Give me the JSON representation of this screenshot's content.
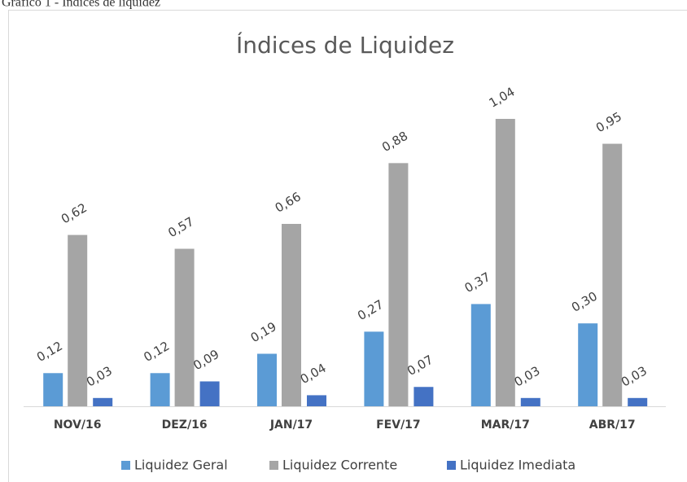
{
  "caption": "Gráfico 1 - Índices de liquidez",
  "chart_data": {
    "type": "bar",
    "title": "Índices de Liquidez",
    "categories": [
      "NOV/16",
      "DEZ/16",
      "JAN/17",
      "FEV/17",
      "MAR/17",
      "ABR/17"
    ],
    "series": [
      {
        "name": "Liquidez Geral",
        "color": "#5b9bd5",
        "values": [
          0.12,
          0.12,
          0.19,
          0.27,
          0.37,
          0.3
        ],
        "value_labels": [
          "0,12",
          "0,12",
          "0,19",
          "0,27",
          "0,37",
          "0,30"
        ]
      },
      {
        "name": "Liquidez Corrente",
        "color": "#a5a5a5",
        "values": [
          0.62,
          0.57,
          0.66,
          0.88,
          1.04,
          0.95
        ],
        "value_labels": [
          "0,62",
          "0,57",
          "0,66",
          "0,88",
          "1,04",
          "0,95"
        ]
      },
      {
        "name": "Liquidez Imediata",
        "color": "#4472c4",
        "values": [
          0.03,
          0.09,
          0.04,
          0.07,
          0.03,
          0.03
        ],
        "value_labels": [
          "0,03",
          "0,09",
          "0,04",
          "0,07",
          "0,03",
          "0,03"
        ]
      }
    ],
    "legend": "bottom"
  }
}
